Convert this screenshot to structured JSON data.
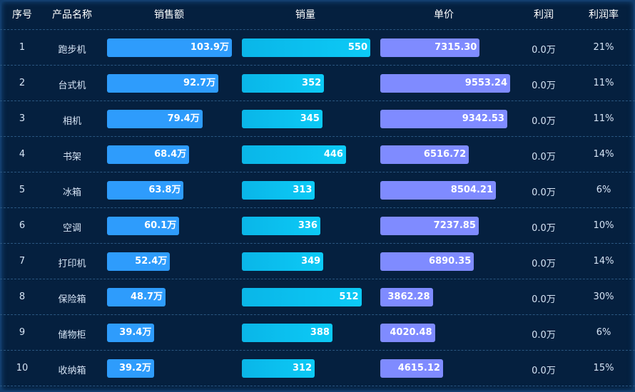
{
  "headers": {
    "index": "序号",
    "name": "产品名称",
    "sales": "销售额",
    "volume": "销量",
    "price": "单价",
    "profit": "利润",
    "profit_rate": "利润率"
  },
  "colors": {
    "sales_bar": "#2e9cfc",
    "volume_bar": "#0cc8f5",
    "price_bar": "#7f8bff",
    "background": "#05203f"
  },
  "max": {
    "sales": 103.9,
    "volume": 550,
    "price": 9553.24
  },
  "rows": [
    {
      "index": "1",
      "name": "跑步机",
      "sales": "103.9万",
      "sales_value": 103.9,
      "volume": "550",
      "price": "7315.30",
      "profit": "0.0万",
      "profit_rate": "21%"
    },
    {
      "index": "2",
      "name": "台式机",
      "sales": "92.7万",
      "sales_value": 92.7,
      "volume": "352",
      "price": "9553.24",
      "profit": "0.0万",
      "profit_rate": "11%"
    },
    {
      "index": "3",
      "name": "相机",
      "sales": "79.4万",
      "sales_value": 79.4,
      "volume": "345",
      "price": "9342.53",
      "profit": "0.0万",
      "profit_rate": "11%"
    },
    {
      "index": "4",
      "name": "书架",
      "sales": "68.4万",
      "sales_value": 68.4,
      "volume": "446",
      "price": "6516.72",
      "profit": "0.0万",
      "profit_rate": "14%"
    },
    {
      "index": "5",
      "name": "冰箱",
      "sales": "63.8万",
      "sales_value": 63.8,
      "volume": "313",
      "price": "8504.21",
      "profit": "0.0万",
      "profit_rate": "6%"
    },
    {
      "index": "6",
      "name": "空调",
      "sales": "60.1万",
      "sales_value": 60.1,
      "volume": "336",
      "price": "7237.85",
      "profit": "0.0万",
      "profit_rate": "10%"
    },
    {
      "index": "7",
      "name": "打印机",
      "sales": "52.4万",
      "sales_value": 52.4,
      "volume": "349",
      "price": "6890.35",
      "profit": "0.0万",
      "profit_rate": "14%"
    },
    {
      "index": "8",
      "name": "保险箱",
      "sales": "48.7万",
      "sales_value": 48.7,
      "volume": "512",
      "price": "3862.28",
      "profit": "0.0万",
      "profit_rate": "30%"
    },
    {
      "index": "9",
      "name": "储物柜",
      "sales": "39.4万",
      "sales_value": 39.4,
      "volume": "388",
      "price": "4020.48",
      "profit": "0.0万",
      "profit_rate": "6%"
    },
    {
      "index": "10",
      "name": "收纳箱",
      "sales": "39.2万",
      "sales_value": 39.2,
      "volume": "312",
      "price": "4615.12",
      "profit": "0.0万",
      "profit_rate": "15%"
    }
  ]
}
